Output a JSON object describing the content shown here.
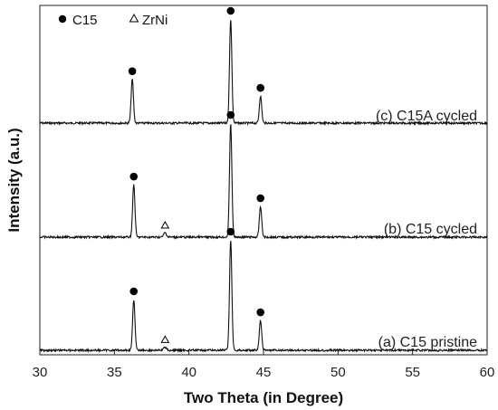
{
  "chart_data": {
    "type": "line",
    "xlabel": "Two Theta (in Degree)",
    "ylabel": "Intensity (a.u.)",
    "xlim": [
      30,
      60
    ],
    "xticks": [
      30,
      35,
      40,
      45,
      50,
      55,
      60
    ],
    "y_tick_labels": false,
    "legend": {
      "placement": "top-left",
      "entries": [
        {
          "marker": "filled-circle",
          "label": "C15"
        },
        {
          "marker": "open-triangle",
          "label": "ZrNi"
        }
      ]
    },
    "series": [
      {
        "name": "(c) C15A cycled",
        "peaks": [
          {
            "two_theta": 36.2,
            "relative_intensity": 0.42,
            "phase": "C15"
          },
          {
            "two_theta": 42.8,
            "relative_intensity": 1.0,
            "phase": "C15"
          },
          {
            "two_theta": 44.8,
            "relative_intensity": 0.26,
            "phase": "C15"
          }
        ]
      },
      {
        "name": "(b) C15 cycled",
        "peaks": [
          {
            "two_theta": 36.3,
            "relative_intensity": 0.46,
            "phase": "C15"
          },
          {
            "two_theta": 38.4,
            "relative_intensity": 0.04,
            "phase": "ZrNi"
          },
          {
            "two_theta": 42.8,
            "relative_intensity": 1.0,
            "phase": "C15"
          },
          {
            "two_theta": 44.8,
            "relative_intensity": 0.27,
            "phase": "C15"
          }
        ]
      },
      {
        "name": "(a) C15 pristine",
        "peaks": [
          {
            "two_theta": 36.3,
            "relative_intensity": 0.46,
            "phase": "C15"
          },
          {
            "two_theta": 38.4,
            "relative_intensity": 0.03,
            "phase": "ZrNi"
          },
          {
            "two_theta": 42.8,
            "relative_intensity": 1.0,
            "phase": "C15"
          },
          {
            "two_theta": 44.8,
            "relative_intensity": 0.27,
            "phase": "C15"
          }
        ]
      }
    ]
  }
}
